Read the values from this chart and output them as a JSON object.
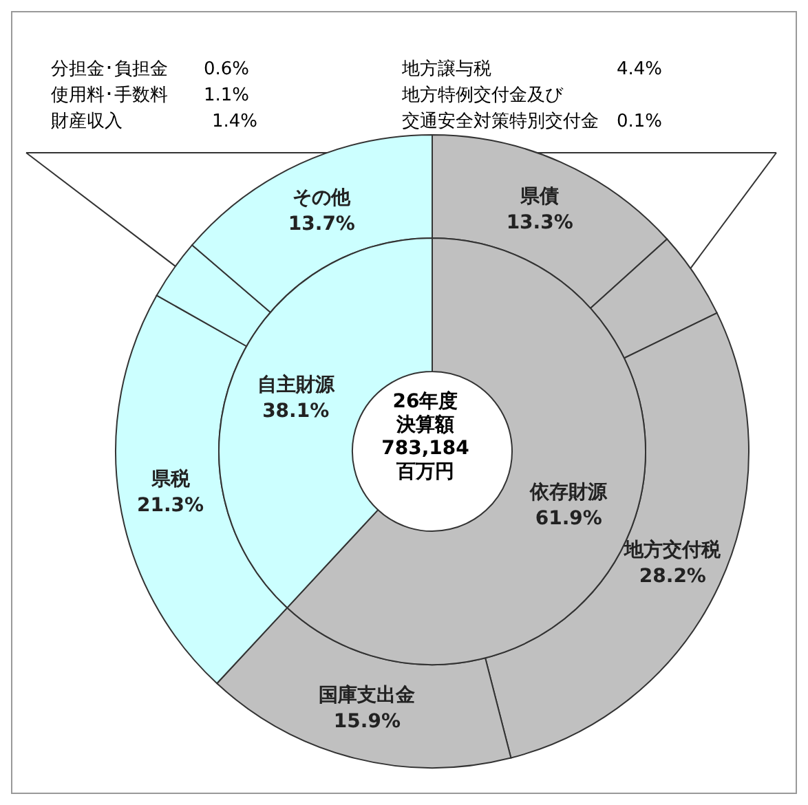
{
  "chart_data": [
    {
      "type": "donut",
      "categories": [
        "依存財源",
        "自主財源"
      ],
      "values": [
        61.9,
        38.1
      ],
      "colors": [
        "#c0c0c0",
        "#ccffff"
      ],
      "value_labels": [
        "61.9%",
        "38.1%"
      ],
      "annotations": [
        "26年度",
        "決算額",
        "783,184",
        "百万円"
      ]
    },
    {
      "type": "donut",
      "categories": [
        "県債",
        null,
        "地方交付税",
        "国庫支出金",
        "県税",
        null,
        "その他"
      ],
      "values": [
        13.3,
        4.5,
        28.2,
        15.9,
        21.3,
        3.1,
        13.7
      ],
      "colors": [
        "#c0c0c0",
        "#c0c0c0",
        "#c0c0c0",
        "#c0c0c0",
        "#ccffff",
        "#ccffff",
        "#ccffff"
      ],
      "value_labels": [
        "13.3%",
        null,
        "28.2%",
        "15.9%",
        "21.3%",
        null,
        "13.7%"
      ],
      "annotations": [
        "分担金･負担金　　0.6%",
        "使用料･手数料　　1.1%",
        "財産収入　　　　　1.4%",
        "地方譲与税　　　　　　　4.4%",
        "地方特例交付金及び",
        "交通安全対策特別交付金　0.1%"
      ]
    }
  ]
}
